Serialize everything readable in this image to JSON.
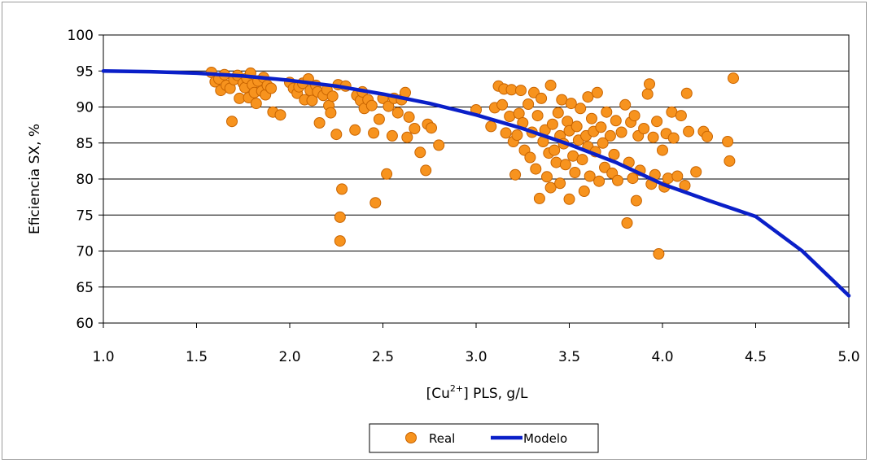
{
  "chart_data": {
    "type": "scatter",
    "title": "",
    "xlabel_prefix": "[Cu",
    "xlabel_sup": "2+",
    "xlabel_suffix": "] PLS, g/L",
    "ylabel": "Eficiencia SX, %",
    "xlim": [
      1.0,
      5.0
    ],
    "ylim": [
      60,
      100
    ],
    "x_ticks": [
      "1.0",
      "1.5",
      "2.0",
      "2.5",
      "3.0",
      "3.5",
      "4.0",
      "4.5",
      "5.0"
    ],
    "y_ticks": [
      "60",
      "65",
      "70",
      "75",
      "80",
      "85",
      "90",
      "95",
      "100"
    ],
    "grid": "horizontal",
    "legend_position": "bottom-center",
    "colors": {
      "real_fill": "#f7931e",
      "real_edge": "#c86400",
      "modelo_line": "#0a1fc8",
      "grid": "#000000"
    },
    "series": [
      {
        "name": "Real",
        "kind": "scatter",
        "points": [
          [
            1.58,
            94.8
          ],
          [
            1.6,
            93.5
          ],
          [
            1.62,
            93.9
          ],
          [
            1.63,
            92.3
          ],
          [
            1.65,
            94.5
          ],
          [
            1.66,
            93.0
          ],
          [
            1.68,
            92.6
          ],
          [
            1.69,
            88.0
          ],
          [
            1.7,
            93.8
          ],
          [
            1.72,
            94.4
          ],
          [
            1.73,
            91.2
          ],
          [
            1.75,
            93.3
          ],
          [
            1.76,
            92.7
          ],
          [
            1.77,
            94.0
          ],
          [
            1.78,
            91.3
          ],
          [
            1.79,
            94.7
          ],
          [
            1.8,
            93.1
          ],
          [
            1.81,
            92.0
          ],
          [
            1.82,
            90.5
          ],
          [
            1.83,
            93.6
          ],
          [
            1.85,
            92.2
          ],
          [
            1.86,
            94.1
          ],
          [
            1.87,
            91.7
          ],
          [
            1.88,
            93.0
          ],
          [
            1.9,
            92.6
          ],
          [
            1.91,
            89.3
          ],
          [
            1.95,
            88.9
          ],
          [
            2.0,
            93.4
          ],
          [
            2.02,
            92.6
          ],
          [
            2.04,
            91.9
          ],
          [
            2.05,
            92.8
          ],
          [
            2.07,
            93.3
          ],
          [
            2.08,
            91.0
          ],
          [
            2.1,
            93.9
          ],
          [
            2.11,
            92.3
          ],
          [
            2.12,
            90.9
          ],
          [
            2.14,
            93.0
          ],
          [
            2.15,
            92.1
          ],
          [
            2.16,
            87.8
          ],
          [
            2.18,
            91.6
          ],
          [
            2.2,
            92.4
          ],
          [
            2.21,
            90.2
          ],
          [
            2.22,
            89.2
          ],
          [
            2.23,
            91.5
          ],
          [
            2.25,
            86.2
          ],
          [
            2.26,
            93.1
          ],
          [
            2.27,
            71.4
          ],
          [
            2.27,
            74.7
          ],
          [
            2.28,
            78.6
          ],
          [
            2.3,
            92.9
          ],
          [
            2.35,
            86.8
          ],
          [
            2.36,
            91.6
          ],
          [
            2.38,
            90.9
          ],
          [
            2.39,
            92.1
          ],
          [
            2.4,
            89.8
          ],
          [
            2.42,
            91.0
          ],
          [
            2.44,
            90.2
          ],
          [
            2.45,
            86.4
          ],
          [
            2.46,
            76.7
          ],
          [
            2.48,
            88.3
          ],
          [
            2.5,
            91.2
          ],
          [
            2.52,
            80.7
          ],
          [
            2.53,
            90.1
          ],
          [
            2.55,
            86.0
          ],
          [
            2.56,
            91.2
          ],
          [
            2.58,
            89.2
          ],
          [
            2.6,
            91.0
          ],
          [
            2.62,
            92.0
          ],
          [
            2.63,
            85.8
          ],
          [
            2.64,
            88.6
          ],
          [
            2.67,
            87.0
          ],
          [
            2.7,
            83.7
          ],
          [
            2.73,
            81.2
          ],
          [
            2.74,
            87.6
          ],
          [
            2.76,
            87.1
          ],
          [
            2.8,
            84.7
          ],
          [
            3.0,
            89.6
          ],
          [
            3.08,
            87.3
          ],
          [
            3.1,
            89.9
          ],
          [
            3.12,
            92.9
          ],
          [
            3.14,
            90.3
          ],
          [
            3.15,
            92.5
          ],
          [
            3.16,
            86.4
          ],
          [
            3.18,
            88.7
          ],
          [
            3.19,
            92.4
          ],
          [
            3.2,
            85.2
          ],
          [
            3.21,
            80.6
          ],
          [
            3.22,
            86.1
          ],
          [
            3.23,
            89.1
          ],
          [
            3.24,
            92.3
          ],
          [
            3.25,
            87.8
          ],
          [
            3.26,
            84.0
          ],
          [
            3.28,
            90.4
          ],
          [
            3.29,
            83.0
          ],
          [
            3.3,
            86.5
          ],
          [
            3.31,
            92.0
          ],
          [
            3.32,
            81.4
          ],
          [
            3.33,
            88.8
          ],
          [
            3.34,
            77.3
          ],
          [
            3.35,
            91.2
          ],
          [
            3.36,
            85.2
          ],
          [
            3.37,
            86.8
          ],
          [
            3.38,
            80.3
          ],
          [
            3.39,
            83.6
          ],
          [
            3.4,
            93.0
          ],
          [
            3.4,
            78.8
          ],
          [
            3.41,
            87.6
          ],
          [
            3.42,
            84.0
          ],
          [
            3.43,
            82.3
          ],
          [
            3.44,
            89.2
          ],
          [
            3.45,
            86.0
          ],
          [
            3.45,
            79.4
          ],
          [
            3.46,
            91.0
          ],
          [
            3.47,
            84.9
          ],
          [
            3.48,
            82.0
          ],
          [
            3.49,
            88.0
          ],
          [
            3.5,
            86.7
          ],
          [
            3.5,
            77.2
          ],
          [
            3.51,
            90.5
          ],
          [
            3.52,
            83.2
          ],
          [
            3.53,
            80.9
          ],
          [
            3.54,
            87.3
          ],
          [
            3.55,
            85.4
          ],
          [
            3.56,
            89.8
          ],
          [
            3.57,
            82.7
          ],
          [
            3.58,
            78.3
          ],
          [
            3.59,
            86.0
          ],
          [
            3.6,
            91.4
          ],
          [
            3.6,
            84.5
          ],
          [
            3.61,
            80.4
          ],
          [
            3.62,
            88.4
          ],
          [
            3.63,
            86.6
          ],
          [
            3.64,
            83.8
          ],
          [
            3.65,
            92.0
          ],
          [
            3.66,
            79.7
          ],
          [
            3.67,
            87.2
          ],
          [
            3.68,
            85.0
          ],
          [
            3.69,
            81.6
          ],
          [
            3.7,
            89.3
          ],
          [
            3.72,
            86.0
          ],
          [
            3.73,
            80.8
          ],
          [
            3.74,
            83.4
          ],
          [
            3.75,
            88.1
          ],
          [
            3.76,
            79.8
          ],
          [
            3.78,
            86.5
          ],
          [
            3.8,
            90.3
          ],
          [
            3.81,
            73.9
          ],
          [
            3.82,
            82.3
          ],
          [
            3.83,
            87.9
          ],
          [
            3.84,
            80.1
          ],
          [
            3.85,
            88.8
          ],
          [
            3.86,
            77.0
          ],
          [
            3.87,
            86.0
          ],
          [
            3.88,
            81.2
          ],
          [
            3.9,
            87.0
          ],
          [
            3.92,
            91.8
          ],
          [
            3.93,
            93.2
          ],
          [
            3.94,
            79.3
          ],
          [
            3.95,
            85.8
          ],
          [
            3.96,
            80.6
          ],
          [
            3.97,
            88.0
          ],
          [
            3.98,
            69.6
          ],
          [
            4.0,
            84.0
          ],
          [
            4.01,
            78.9
          ],
          [
            4.02,
            86.3
          ],
          [
            4.03,
            80.1
          ],
          [
            4.05,
            89.3
          ],
          [
            4.06,
            85.7
          ],
          [
            4.08,
            80.4
          ],
          [
            4.1,
            88.8
          ],
          [
            4.12,
            79.1
          ],
          [
            4.13,
            91.9
          ],
          [
            4.14,
            86.6
          ],
          [
            4.18,
            81.0
          ],
          [
            4.22,
            86.6
          ],
          [
            4.24,
            85.9
          ],
          [
            4.35,
            85.2
          ],
          [
            4.36,
            82.5
          ],
          [
            4.38,
            94.0
          ]
        ]
      },
      {
        "name": "Modelo",
        "kind": "line",
        "x": [
          1.0,
          1.25,
          1.5,
          1.75,
          2.0,
          2.25,
          2.5,
          2.75,
          3.0,
          3.25,
          3.5,
          3.75,
          4.0,
          4.25,
          4.5,
          4.75,
          5.0
        ],
        "y": [
          95.0,
          94.9,
          94.7,
          94.3,
          93.7,
          92.9,
          91.8,
          90.5,
          88.9,
          87.0,
          84.8,
          82.3,
          79.3,
          77.0,
          74.8,
          70.0,
          63.8
        ]
      }
    ]
  }
}
